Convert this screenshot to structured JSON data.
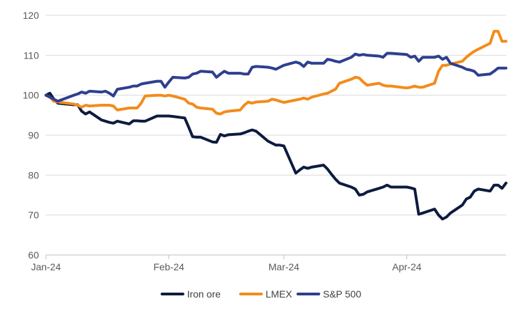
{
  "chart_data": {
    "type": "line",
    "title": "",
    "xlabel": "",
    "ylabel": "",
    "ylim": [
      60,
      120
    ],
    "yticks": [
      60,
      70,
      80,
      90,
      100,
      110,
      120
    ],
    "x_axis": {
      "type": "time",
      "range": [
        "2024-01-01",
        "2024-04-26"
      ],
      "tick_dates": [
        "2024-01-01",
        "2024-02-01",
        "2024-03-01",
        "2024-04-01"
      ],
      "tick_labels": [
        "Jan-24",
        "Feb-24",
        "Mar-24",
        "Apr-24"
      ]
    },
    "grid": "horizontal",
    "legend_position": "bottom",
    "series": [
      {
        "name": "Iron ore",
        "color": "#0d1b3e",
        "points": [
          [
            "2024-01-01",
            100.0
          ],
          [
            "2024-01-02",
            100.5
          ],
          [
            "2024-01-03",
            99.0
          ],
          [
            "2024-01-04",
            98.0
          ],
          [
            "2024-01-08",
            97.6
          ],
          [
            "2024-01-09",
            97.6
          ],
          [
            "2024-01-10",
            96.0
          ],
          [
            "2024-01-11",
            95.3
          ],
          [
            "2024-01-12",
            95.8
          ],
          [
            "2024-01-15",
            93.8
          ],
          [
            "2024-01-16",
            93.5
          ],
          [
            "2024-01-17",
            93.2
          ],
          [
            "2024-01-18",
            93.0
          ],
          [
            "2024-01-19",
            93.5
          ],
          [
            "2024-01-22",
            92.8
          ],
          [
            "2024-01-23",
            93.6
          ],
          [
            "2024-01-24",
            93.6
          ],
          [
            "2024-01-25",
            93.5
          ],
          [
            "2024-01-26",
            93.5
          ],
          [
            "2024-01-29",
            94.8
          ],
          [
            "2024-01-30",
            94.8
          ],
          [
            "2024-01-31",
            94.8
          ],
          [
            "2024-02-01",
            94.8
          ],
          [
            "2024-02-02",
            94.7
          ],
          [
            "2024-02-05",
            94.3
          ],
          [
            "2024-02-06",
            92.0
          ],
          [
            "2024-02-07",
            89.6
          ],
          [
            "2024-02-08",
            89.5
          ],
          [
            "2024-02-09",
            89.5
          ],
          [
            "2024-02-12",
            88.3
          ],
          [
            "2024-02-13",
            88.2
          ],
          [
            "2024-02-14",
            90.2
          ],
          [
            "2024-02-15",
            89.8
          ],
          [
            "2024-02-16",
            90.1
          ],
          [
            "2024-02-19",
            90.3
          ],
          [
            "2024-02-20",
            90.6
          ],
          [
            "2024-02-21",
            91.0
          ],
          [
            "2024-02-22",
            91.3
          ],
          [
            "2024-02-23",
            91.0
          ],
          [
            "2024-02-26",
            88.5
          ],
          [
            "2024-02-27",
            88.0
          ],
          [
            "2024-02-28",
            87.5
          ],
          [
            "2024-02-29",
            87.5
          ],
          [
            "2024-03-01",
            87.3
          ],
          [
            "2024-03-04",
            80.5
          ],
          [
            "2024-03-05",
            81.3
          ],
          [
            "2024-03-06",
            82.0
          ],
          [
            "2024-03-07",
            81.7
          ],
          [
            "2024-03-08",
            82.0
          ],
          [
            "2024-03-11",
            82.5
          ],
          [
            "2024-03-12",
            81.5
          ],
          [
            "2024-03-13",
            80.2
          ],
          [
            "2024-03-14",
            79.0
          ],
          [
            "2024-03-15",
            78.0
          ],
          [
            "2024-03-18",
            77.0
          ],
          [
            "2024-03-19",
            76.5
          ],
          [
            "2024-03-20",
            75.0
          ],
          [
            "2024-03-21",
            75.2
          ],
          [
            "2024-03-22",
            75.8
          ],
          [
            "2024-03-25",
            76.7
          ],
          [
            "2024-03-26",
            77.0
          ],
          [
            "2024-03-27",
            77.5
          ],
          [
            "2024-03-28",
            77.0
          ],
          [
            "2024-04-01",
            77.0
          ],
          [
            "2024-04-02",
            76.8
          ],
          [
            "2024-04-03",
            76.5
          ],
          [
            "2024-04-04",
            70.2
          ],
          [
            "2024-04-05",
            70.5
          ],
          [
            "2024-04-08",
            71.5
          ],
          [
            "2024-04-09",
            70.0
          ],
          [
            "2024-04-10",
            69.0
          ],
          [
            "2024-04-11",
            69.5
          ],
          [
            "2024-04-12",
            70.5
          ],
          [
            "2024-04-15",
            72.5
          ],
          [
            "2024-04-16",
            74.0
          ],
          [
            "2024-04-17",
            74.5
          ],
          [
            "2024-04-18",
            76.0
          ],
          [
            "2024-04-19",
            76.5
          ],
          [
            "2024-04-22",
            76.0
          ],
          [
            "2024-04-23",
            77.5
          ],
          [
            "2024-04-24",
            77.5
          ],
          [
            "2024-04-25",
            76.7
          ],
          [
            "2024-04-26",
            78.0
          ]
        ]
      },
      {
        "name": "LMEX",
        "color": "#f28c1c",
        "points": [
          [
            "2024-01-01",
            100.0
          ],
          [
            "2024-01-02",
            99.5
          ],
          [
            "2024-01-03",
            98.5
          ],
          [
            "2024-01-04",
            98.3
          ],
          [
            "2024-01-08",
            97.8
          ],
          [
            "2024-01-09",
            97.5
          ],
          [
            "2024-01-10",
            97.0
          ],
          [
            "2024-01-11",
            97.5
          ],
          [
            "2024-01-12",
            97.3
          ],
          [
            "2024-01-15",
            97.5
          ],
          [
            "2024-01-16",
            97.5
          ],
          [
            "2024-01-17",
            97.5
          ],
          [
            "2024-01-18",
            97.3
          ],
          [
            "2024-01-19",
            96.3
          ],
          [
            "2024-01-22",
            96.8
          ],
          [
            "2024-01-23",
            96.8
          ],
          [
            "2024-01-24",
            96.8
          ],
          [
            "2024-01-25",
            98.0
          ],
          [
            "2024-01-26",
            99.8
          ],
          [
            "2024-01-29",
            100.0
          ],
          [
            "2024-01-30",
            100.0
          ],
          [
            "2024-01-31",
            99.8
          ],
          [
            "2024-02-01",
            100.0
          ],
          [
            "2024-02-02",
            99.8
          ],
          [
            "2024-02-05",
            99.0
          ],
          [
            "2024-02-06",
            98.0
          ],
          [
            "2024-02-07",
            97.8
          ],
          [
            "2024-02-08",
            97.0
          ],
          [
            "2024-02-09",
            96.8
          ],
          [
            "2024-02-12",
            96.5
          ],
          [
            "2024-02-13",
            95.5
          ],
          [
            "2024-02-14",
            95.3
          ],
          [
            "2024-02-15",
            95.8
          ],
          [
            "2024-02-16",
            96.0
          ],
          [
            "2024-02-19",
            96.3
          ],
          [
            "2024-02-20",
            97.5
          ],
          [
            "2024-02-21",
            98.3
          ],
          [
            "2024-02-22",
            98.0
          ],
          [
            "2024-02-23",
            98.3
          ],
          [
            "2024-02-26",
            98.5
          ],
          [
            "2024-02-27",
            99.0
          ],
          [
            "2024-02-28",
            98.8
          ],
          [
            "2024-02-29",
            98.5
          ],
          [
            "2024-03-01",
            98.2
          ],
          [
            "2024-03-04",
            98.8
          ],
          [
            "2024-03-05",
            99.0
          ],
          [
            "2024-03-06",
            99.3
          ],
          [
            "2024-03-07",
            99.0
          ],
          [
            "2024-03-08",
            99.5
          ],
          [
            "2024-03-11",
            100.3
          ],
          [
            "2024-03-12",
            100.5
          ],
          [
            "2024-03-13",
            101.0
          ],
          [
            "2024-03-14",
            101.5
          ],
          [
            "2024-03-15",
            103.0
          ],
          [
            "2024-03-18",
            104.0
          ],
          [
            "2024-03-19",
            104.5
          ],
          [
            "2024-03-20",
            104.3
          ],
          [
            "2024-03-21",
            103.3
          ],
          [
            "2024-03-22",
            102.5
          ],
          [
            "2024-03-25",
            103.0
          ],
          [
            "2024-03-26",
            102.5
          ],
          [
            "2024-03-27",
            102.3
          ],
          [
            "2024-03-28",
            102.3
          ],
          [
            "2024-04-01",
            101.8
          ],
          [
            "2024-04-02",
            102.0
          ],
          [
            "2024-04-03",
            102.3
          ],
          [
            "2024-04-04",
            102.0
          ],
          [
            "2024-04-05",
            102.0
          ],
          [
            "2024-04-08",
            103.0
          ],
          [
            "2024-04-09",
            106.0
          ],
          [
            "2024-04-10",
            107.5
          ],
          [
            "2024-04-11",
            107.5
          ],
          [
            "2024-04-12",
            107.8
          ],
          [
            "2024-04-15",
            108.5
          ],
          [
            "2024-04-16",
            109.5
          ],
          [
            "2024-04-17",
            110.3
          ],
          [
            "2024-04-18",
            111.0
          ],
          [
            "2024-04-19",
            111.5
          ],
          [
            "2024-04-22",
            113.0
          ],
          [
            "2024-04-23",
            116.0
          ],
          [
            "2024-04-24",
            116.0
          ],
          [
            "2024-04-25",
            113.5
          ],
          [
            "2024-04-26",
            113.5
          ]
        ]
      },
      {
        "name": "S&P 500",
        "color": "#2e3f8f",
        "points": [
          [
            "2024-01-01",
            100.0
          ],
          [
            "2024-01-02",
            99.5
          ],
          [
            "2024-01-03",
            99.0
          ],
          [
            "2024-01-04",
            98.5
          ],
          [
            "2024-01-08",
            100.0
          ],
          [
            "2024-01-09",
            100.3
          ],
          [
            "2024-01-10",
            100.8
          ],
          [
            "2024-01-11",
            100.5
          ],
          [
            "2024-01-12",
            101.0
          ],
          [
            "2024-01-15",
            100.8
          ],
          [
            "2024-01-16",
            101.0
          ],
          [
            "2024-01-17",
            100.5
          ],
          [
            "2024-01-18",
            99.8
          ],
          [
            "2024-01-19",
            101.5
          ],
          [
            "2024-01-22",
            102.0
          ],
          [
            "2024-01-23",
            102.3
          ],
          [
            "2024-01-24",
            102.3
          ],
          [
            "2024-01-25",
            102.8
          ],
          [
            "2024-01-26",
            103.0
          ],
          [
            "2024-01-29",
            103.5
          ],
          [
            "2024-01-30",
            103.5
          ],
          [
            "2024-01-31",
            102.0
          ],
          [
            "2024-02-01",
            103.3
          ],
          [
            "2024-02-02",
            104.5
          ],
          [
            "2024-02-05",
            104.3
          ],
          [
            "2024-02-06",
            104.5
          ],
          [
            "2024-02-07",
            105.3
          ],
          [
            "2024-02-08",
            105.5
          ],
          [
            "2024-02-09",
            106.0
          ],
          [
            "2024-02-12",
            105.8
          ],
          [
            "2024-02-13",
            104.5
          ],
          [
            "2024-02-14",
            105.3
          ],
          [
            "2024-02-15",
            106.0
          ],
          [
            "2024-02-16",
            105.5
          ],
          [
            "2024-02-19",
            105.5
          ],
          [
            "2024-02-20",
            105.3
          ],
          [
            "2024-02-21",
            105.3
          ],
          [
            "2024-02-22",
            107.0
          ],
          [
            "2024-02-23",
            107.2
          ],
          [
            "2024-02-26",
            107.0
          ],
          [
            "2024-02-27",
            106.8
          ],
          [
            "2024-02-28",
            106.5
          ],
          [
            "2024-02-29",
            107.0
          ],
          [
            "2024-03-01",
            107.5
          ],
          [
            "2024-03-04",
            108.3
          ],
          [
            "2024-03-05",
            108.0
          ],
          [
            "2024-03-06",
            107.2
          ],
          [
            "2024-03-07",
            108.3
          ],
          [
            "2024-03-08",
            108.0
          ],
          [
            "2024-03-11",
            108.0
          ],
          [
            "2024-03-12",
            109.0
          ],
          [
            "2024-03-13",
            108.8
          ],
          [
            "2024-03-14",
            108.5
          ],
          [
            "2024-03-15",
            108.3
          ],
          [
            "2024-03-18",
            109.5
          ],
          [
            "2024-03-19",
            110.3
          ],
          [
            "2024-03-20",
            110.0
          ],
          [
            "2024-03-21",
            110.2
          ],
          [
            "2024-03-22",
            110.0
          ],
          [
            "2024-03-25",
            109.8
          ],
          [
            "2024-03-26",
            109.5
          ],
          [
            "2024-03-27",
            110.5
          ],
          [
            "2024-03-28",
            110.5
          ],
          [
            "2024-04-01",
            110.2
          ],
          [
            "2024-04-02",
            109.5
          ],
          [
            "2024-04-03",
            109.8
          ],
          [
            "2024-04-04",
            108.5
          ],
          [
            "2024-04-05",
            109.5
          ],
          [
            "2024-04-08",
            109.5
          ],
          [
            "2024-04-09",
            109.8
          ],
          [
            "2024-04-10",
            109.0
          ],
          [
            "2024-04-11",
            109.5
          ],
          [
            "2024-04-12",
            108.0
          ],
          [
            "2024-04-15",
            107.0
          ],
          [
            "2024-04-16",
            106.5
          ],
          [
            "2024-04-17",
            106.3
          ],
          [
            "2024-04-18",
            106.0
          ],
          [
            "2024-04-19",
            105.0
          ],
          [
            "2024-04-22",
            105.3
          ],
          [
            "2024-04-23",
            106.0
          ],
          [
            "2024-04-24",
            106.8
          ],
          [
            "2024-04-25",
            106.8
          ],
          [
            "2024-04-26",
            106.8
          ]
        ]
      }
    ]
  }
}
